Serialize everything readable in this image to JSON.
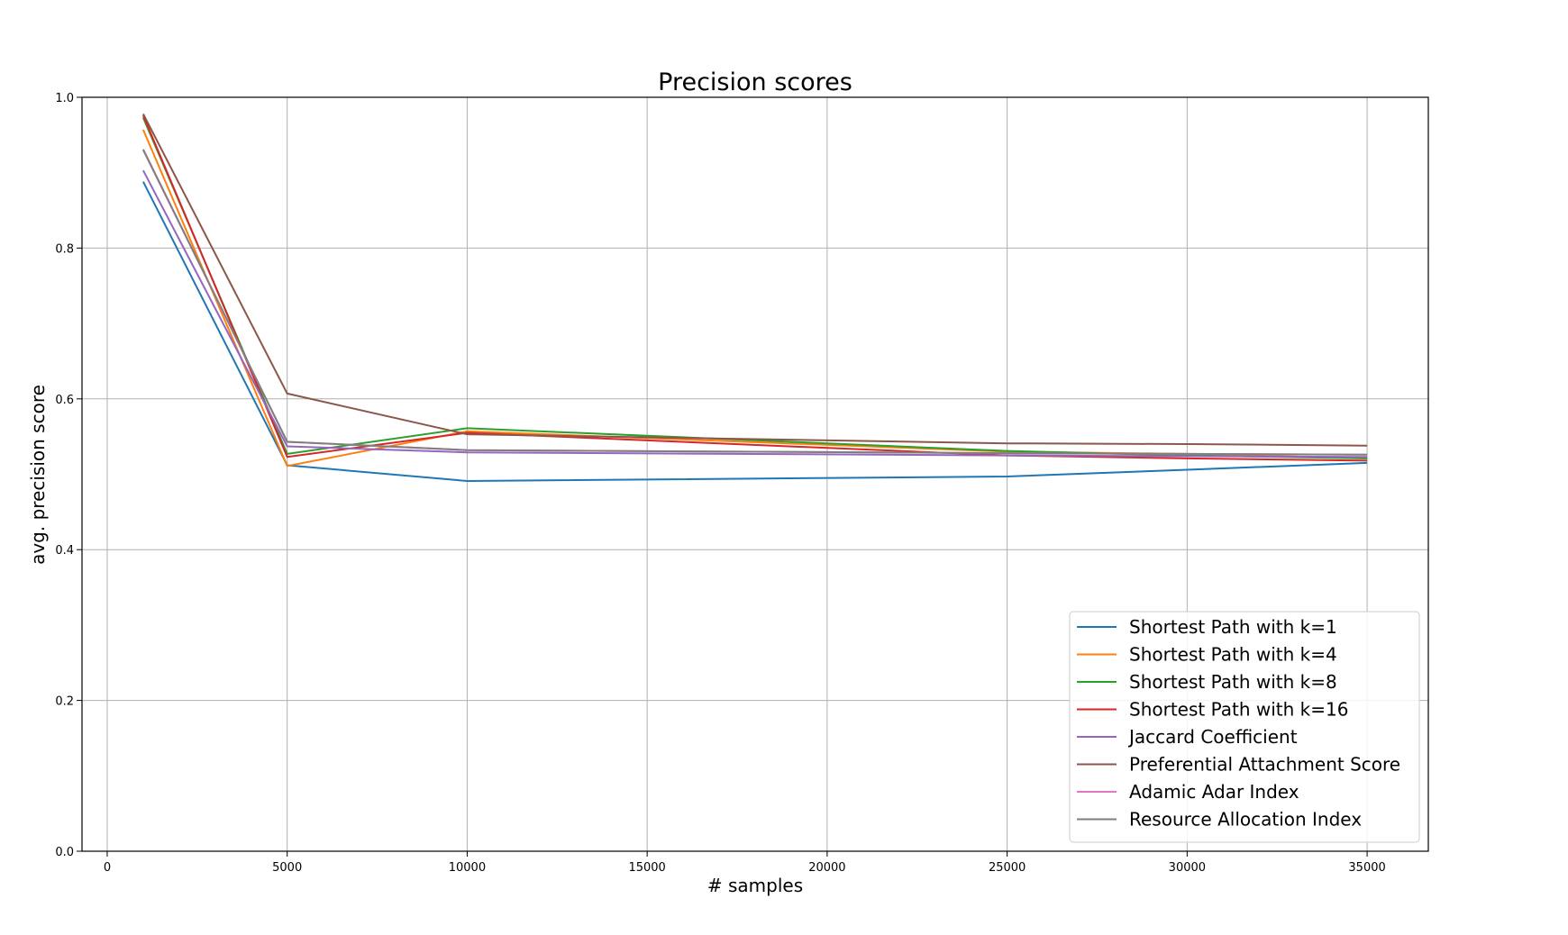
{
  "chart_data": {
    "type": "line",
    "title": "Precision scores",
    "xlabel": "# samples",
    "ylabel": "avg. precision score",
    "xlim": [
      -700,
      36700
    ],
    "ylim": [
      0.0,
      1.0
    ],
    "x_ticks": [
      0,
      5000,
      10000,
      15000,
      20000,
      25000,
      30000,
      35000
    ],
    "y_ticks": [
      0.0,
      0.2,
      0.4,
      0.6,
      0.8,
      1.0
    ],
    "grid": true,
    "legend_position": "bottom-right",
    "x": [
      1000,
      5000,
      10000,
      25000,
      30000,
      35000
    ],
    "series": [
      {
        "name": "Shortest Path with k=1",
        "color": "#1f77b4",
        "values": [
          0.888,
          0.512,
          0.491,
          0.497,
          0.506,
          0.515
        ]
      },
      {
        "name": "Shortest Path with k=4",
        "color": "#ff7f0e",
        "values": [
          0.957,
          0.511,
          0.557,
          0.53,
          0.527,
          0.521
        ]
      },
      {
        "name": "Shortest Path with k=8",
        "color": "#2ca02c",
        "values": [
          0.973,
          0.527,
          0.561,
          0.531,
          0.525,
          0.521
        ]
      },
      {
        "name": "Shortest Path with k=16",
        "color": "#d62728",
        "values": [
          0.976,
          0.523,
          0.555,
          0.525,
          0.521,
          0.518
        ]
      },
      {
        "name": "Jaccard Coefficient",
        "color": "#9467bd",
        "values": [
          0.903,
          0.537,
          0.529,
          0.525,
          0.524,
          0.523
        ]
      },
      {
        "name": "Preferential Attachment Score",
        "color": "#8c564b",
        "values": [
          0.978,
          0.607,
          0.553,
          0.541,
          0.54,
          0.538
        ]
      },
      {
        "name": "Adamic Adar Index",
        "color": "#e377c2",
        "values": [
          0.93,
          0.543,
          0.532,
          0.528,
          0.527,
          0.526
        ]
      },
      {
        "name": "Resource Allocation Index",
        "color": "#7f7f7f",
        "values": [
          0.931,
          0.543,
          0.532,
          0.528,
          0.527,
          0.526
        ]
      }
    ]
  }
}
